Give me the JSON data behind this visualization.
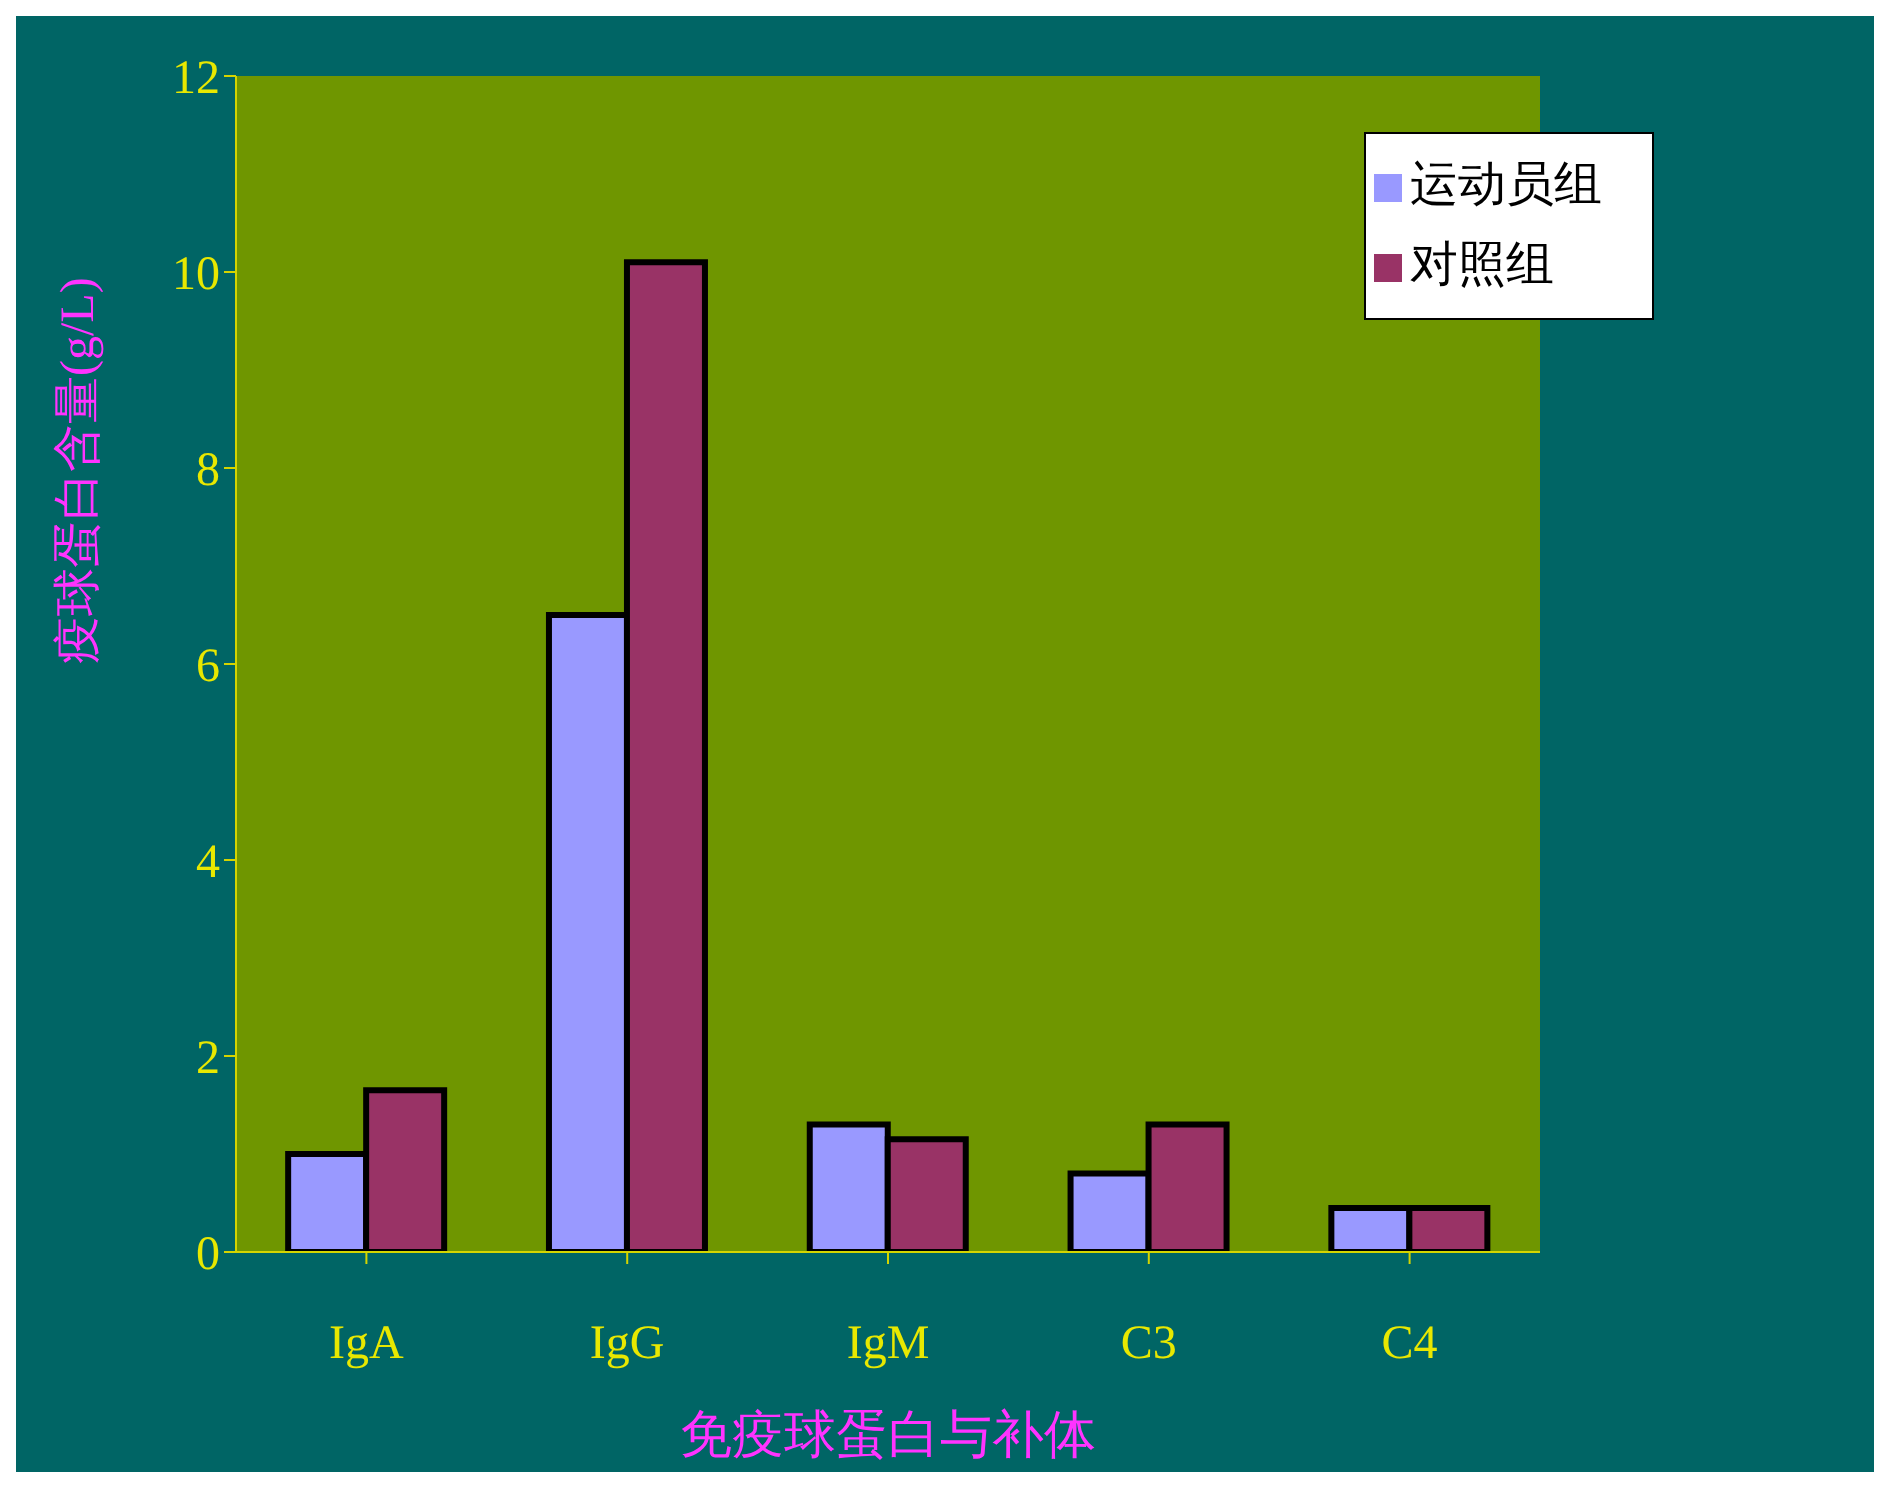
{
  "chart_data": {
    "type": "bar",
    "xlabel": "免疫球蛋白与补体",
    "ylabel": "疫球蛋白含量(g/L)",
    "categories": [
      "IgA",
      "IgG",
      "IgM",
      "C3",
      "C4"
    ],
    "series": [
      {
        "name": "运动员组",
        "color": "#9999ff",
        "values": [
          1.0,
          6.5,
          1.3,
          0.8,
          0.45
        ]
      },
      {
        "name": "对照组",
        "color": "#993366",
        "values": [
          1.65,
          10.1,
          1.15,
          1.3,
          0.45
        ]
      }
    ],
    "ylim": [
      0,
      12
    ],
    "yticks": [
      0,
      2,
      4,
      6,
      8,
      10,
      12
    ],
    "grid": false,
    "legend": "top right"
  }
}
